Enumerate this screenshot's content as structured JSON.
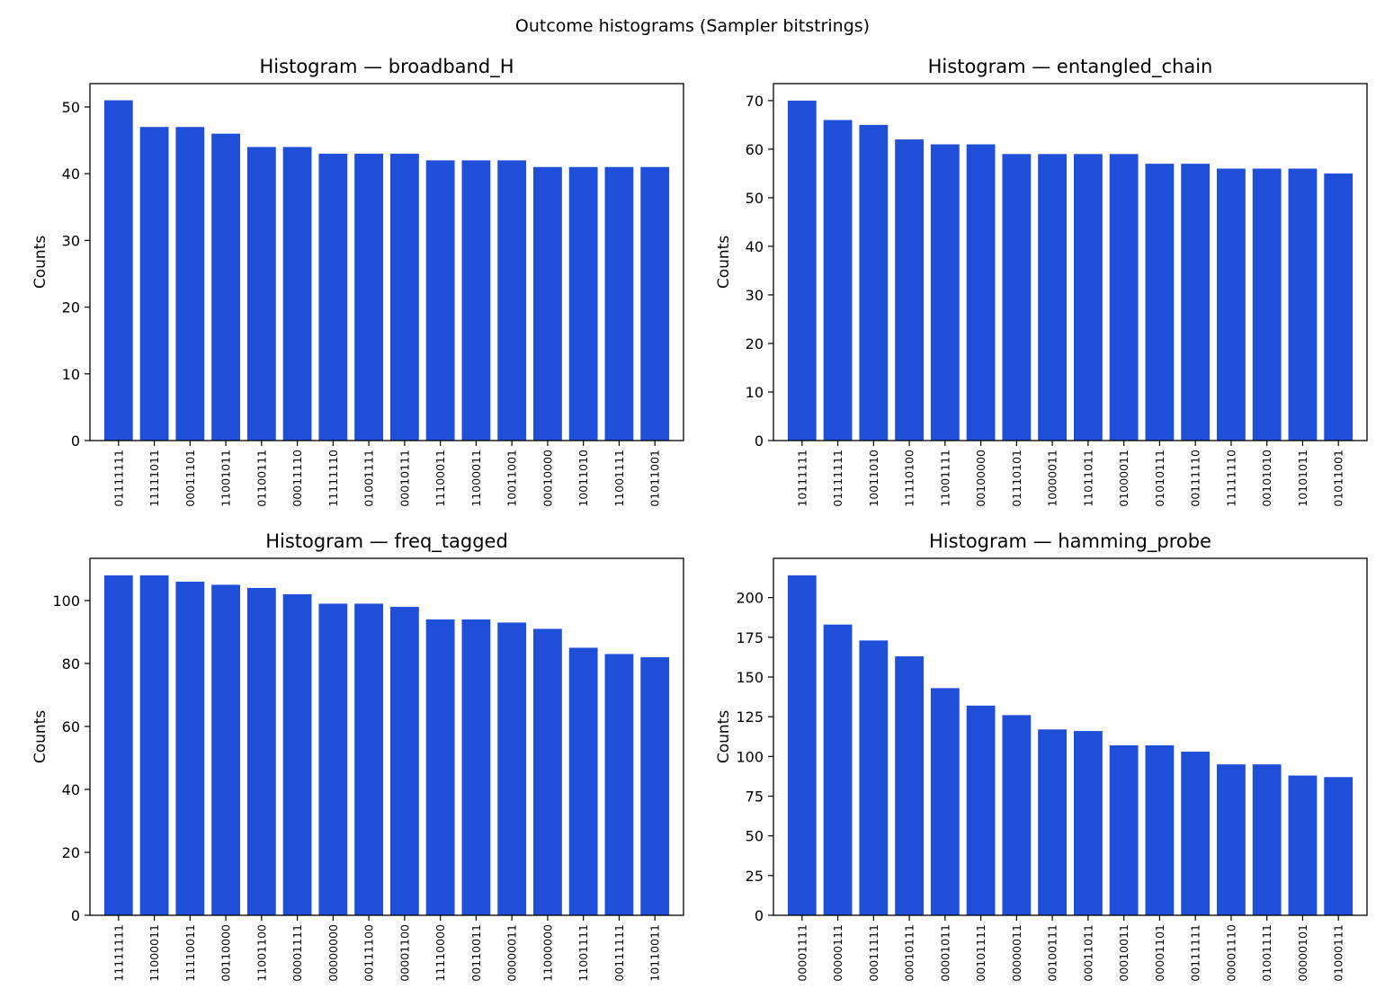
{
  "figure": {
    "suptitle": "Outcome histograms (Sampler bitstrings)",
    "bar_color": "#1f4fd8"
  },
  "chart_data": [
    {
      "type": "bar",
      "title": "Histogram — broadband_H",
      "xlabel": "",
      "ylabel": "Counts",
      "ylim": [
        0,
        53.5
      ],
      "yticks": [
        0,
        10,
        20,
        30,
        40,
        50
      ],
      "categories": [
        "01111111",
        "11111011",
        "00011101",
        "11001011",
        "01100111",
        "00011110",
        "11111110",
        "01001111",
        "00010111",
        "11100011",
        "11000011",
        "10011001",
        "00010000",
        "10011010",
        "11001111",
        "01011001"
      ],
      "values": [
        51,
        47,
        47,
        46,
        44,
        44,
        43,
        43,
        43,
        42,
        42,
        42,
        41,
        41,
        41,
        41
      ]
    },
    {
      "type": "bar",
      "title": "Histogram — entangled_chain",
      "xlabel": "",
      "ylabel": "Counts",
      "ylim": [
        0,
        73.5
      ],
      "yticks": [
        0,
        10,
        20,
        30,
        40,
        50,
        60,
        70
      ],
      "categories": [
        "10111111",
        "01111111",
        "10011010",
        "11110100",
        "11001111",
        "00100000",
        "01110101",
        "10000011",
        "11011011",
        "01000011",
        "01010111",
        "00111110",
        "11111110",
        "00101010",
        "10101011",
        "01011001"
      ],
      "values": [
        70,
        66,
        65,
        62,
        61,
        61,
        59,
        59,
        59,
        59,
        57,
        57,
        56,
        56,
        56,
        55
      ]
    },
    {
      "type": "bar",
      "title": "Histogram — freq_tagged",
      "xlabel": "",
      "ylabel": "Counts",
      "ylim": [
        0,
        113.4
      ],
      "yticks": [
        0,
        20,
        40,
        60,
        80,
        100
      ],
      "categories": [
        "11111111",
        "11000011",
        "11110011",
        "00110000",
        "11001100",
        "00001111",
        "00000000",
        "00111100",
        "00001100",
        "11110000",
        "00110011",
        "00000011",
        "11000000",
        "11001111",
        "00111111",
        "10110011"
      ],
      "values": [
        108,
        108,
        106,
        105,
        104,
        102,
        99,
        99,
        98,
        94,
        94,
        93,
        91,
        85,
        83,
        82
      ]
    },
    {
      "type": "bar",
      "title": "Histogram — hamming_probe",
      "xlabel": "",
      "ylabel": "Counts",
      "ylim": [
        0,
        224.7
      ],
      "yticks": [
        0,
        25,
        50,
        75,
        100,
        125,
        150,
        175,
        200
      ],
      "categories": [
        "00001111",
        "00000111",
        "00011111",
        "00010111",
        "00001011",
        "00101111",
        "00000011",
        "00100111",
        "00011011",
        "00010011",
        "00001101",
        "00111111",
        "00001110",
        "01001111",
        "00000101",
        "01000111"
      ],
      "values": [
        214,
        183,
        173,
        163,
        143,
        132,
        126,
        117,
        116,
        107,
        107,
        103,
        95,
        95,
        88,
        87
      ]
    }
  ]
}
